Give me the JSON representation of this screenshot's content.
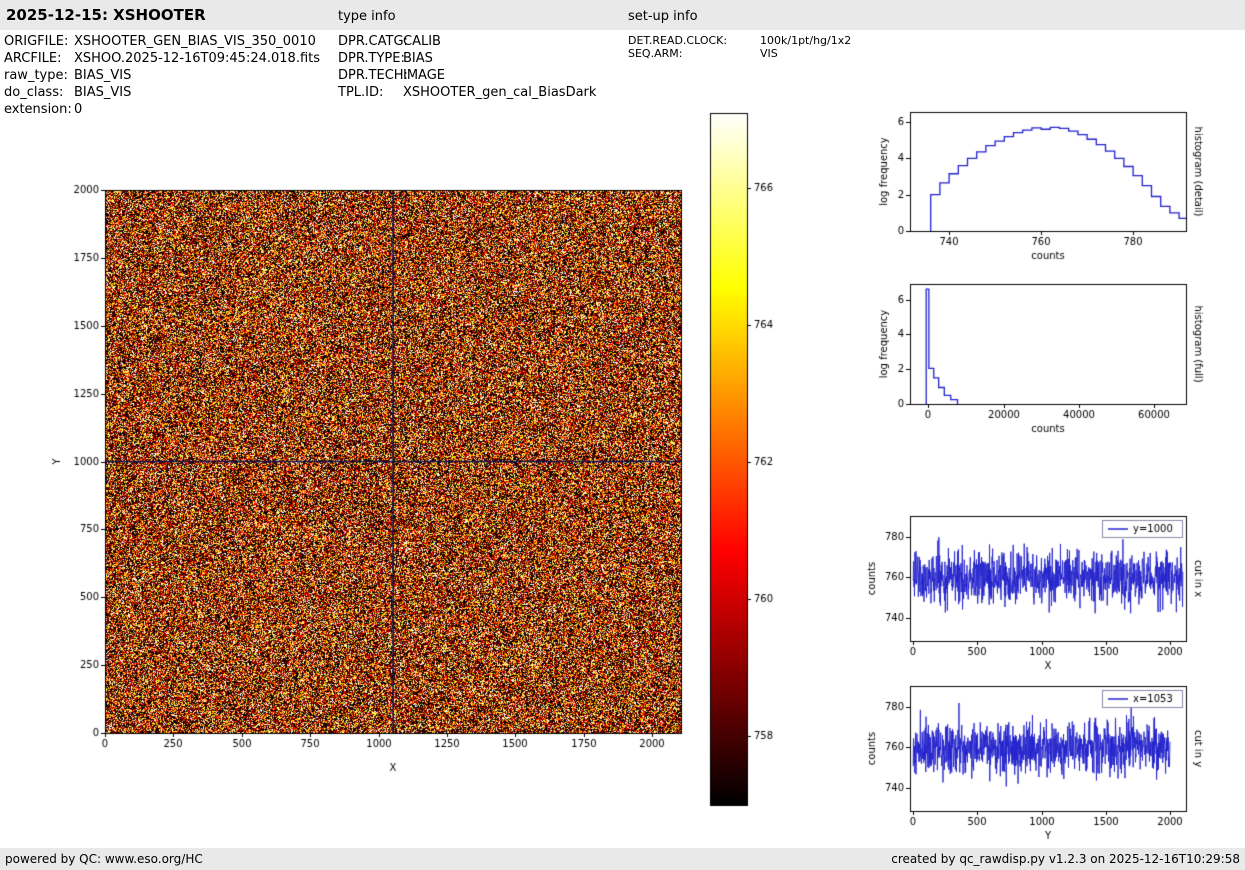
{
  "header": {
    "title": "2025-12-15: XSHOOTER",
    "type_info_label": "type info",
    "setup_info_label": "set-up info"
  },
  "file_info": {
    "rows": [
      {
        "label": "ORIGFILE:",
        "value": "XSHOOTER_GEN_BIAS_VIS_350_0010"
      },
      {
        "label": "ARCFILE:",
        "value": "XSHOO.2025-12-16T09:45:24.018.fits"
      },
      {
        "label": "raw_type:",
        "value": "BIAS_VIS"
      },
      {
        "label": "do_class:",
        "value": "BIAS_VIS"
      },
      {
        "label": "extension:",
        "value": "0"
      }
    ]
  },
  "type_info": {
    "rows": [
      {
        "label": "DPR.CATG:",
        "value": "CALIB"
      },
      {
        "label": "DPR.TYPE:",
        "value": "BIAS"
      },
      {
        "label": "DPR.TECH:",
        "value": "IMAGE"
      },
      {
        "label": "TPL.ID:",
        "value": "XSHOOTER_gen_cal_BiasDark"
      }
    ]
  },
  "setup_info": {
    "rows": [
      {
        "label": "DET.READ.CLOCK:",
        "value": "100k/1pt/hg/1x2"
      },
      {
        "label": "SEQ.ARM:",
        "value": "VIS"
      }
    ]
  },
  "footer": {
    "left": "powered by QC: www.eso.org/HC",
    "right": "created by qc_rawdisp.py v1.2.3 on 2025-12-16T10:29:58"
  },
  "chart_data": [
    {
      "id": "main-image",
      "type": "heatmap",
      "xlabel": "X",
      "ylabel": "Y",
      "xlim": [
        0,
        2105
      ],
      "ylim": [
        0,
        2000
      ],
      "x_ticks": [
        0,
        250,
        500,
        750,
        1000,
        1250,
        1500,
        1750,
        2000
      ],
      "y_ticks": [
        0,
        250,
        500,
        750,
        1000,
        1250,
        1500,
        1750,
        2000
      ],
      "colormap": "hot",
      "value_range": [
        757.0,
        767.1
      ],
      "pixel_mean": 760,
      "pixel_sd": 5,
      "colorbar_ticks": [
        758,
        760,
        762,
        764,
        766
      ],
      "crosshair": {
        "x": 1053,
        "y": 1000,
        "color": "#12124d"
      }
    },
    {
      "id": "hist-detail",
      "type": "bar",
      "style": "step",
      "xlabel": "counts",
      "ylabel": "log frequency",
      "right_label": "histogram (detail)",
      "xlim": [
        731.5,
        791.5
      ],
      "ylim": [
        0,
        6.55
      ],
      "x_ticks": [
        740,
        760,
        780
      ],
      "y_ticks": [
        0,
        2,
        4,
        6
      ],
      "line_color": "#2222cc",
      "bin_edges": [
        736,
        738,
        740,
        742,
        744,
        746,
        748,
        750,
        752,
        754,
        756,
        758,
        760,
        762,
        764,
        766,
        768,
        770,
        772,
        774,
        776,
        778,
        780,
        782,
        784,
        786,
        788,
        790,
        792
      ],
      "values": [
        2.0,
        2.65,
        3.15,
        3.6,
        4.0,
        4.35,
        4.7,
        4.95,
        5.2,
        5.42,
        5.55,
        5.68,
        5.6,
        5.7,
        5.65,
        5.5,
        5.3,
        5.05,
        4.75,
        4.4,
        4.0,
        3.55,
        3.05,
        2.5,
        1.9,
        1.35,
        1.0,
        0.7
      ]
    },
    {
      "id": "hist-full",
      "type": "bar",
      "style": "step",
      "xlabel": "counts",
      "ylabel": "log frequency",
      "right_label": "histogram (full)",
      "xlim": [
        -4800,
        68400
      ],
      "ylim": [
        0,
        6.9
      ],
      "x_ticks": [
        0,
        20000,
        40000,
        60000
      ],
      "y_ticks": [
        0,
        2,
        4,
        6
      ],
      "line_color": "#2222cc",
      "bin_edges": [
        -500,
        200,
        1500,
        2800,
        4300,
        6000,
        7800
      ],
      "values": [
        6.6,
        2.05,
        1.5,
        0.95,
        0.5,
        0.25
      ]
    },
    {
      "id": "cut-x",
      "type": "line",
      "xlabel": "X",
      "ylabel": "counts",
      "right_label": "cut in x",
      "xlim": [
        -25,
        2125
      ],
      "ylim": [
        728.5,
        790.5
      ],
      "x_ticks": [
        0,
        500,
        1000,
        1500,
        2000
      ],
      "y_ticks": [
        740,
        760,
        780
      ],
      "legend_position": "upper right",
      "series": [
        {
          "name": "y=1000",
          "color": "#2222cc",
          "mean": 760,
          "sd": 6.5,
          "n": 1050,
          "seed": 20251215,
          "data_range": [
            0,
            2100
          ]
        }
      ]
    },
    {
      "id": "cut-y",
      "type": "line",
      "xlabel": "Y",
      "ylabel": "counts",
      "right_label": "cut in y",
      "xlim": [
        -25,
        2125
      ],
      "ylim": [
        728.5,
        790.5
      ],
      "x_ticks": [
        0,
        500,
        1000,
        1500,
        2000
      ],
      "y_ticks": [
        740,
        760,
        780
      ],
      "legend_position": "upper right",
      "series": [
        {
          "name": "x=1053",
          "color": "#2222cc",
          "mean": 760,
          "sd": 6.5,
          "n": 1000,
          "seed": 1053,
          "data_range": [
            0,
            2000
          ]
        }
      ]
    }
  ]
}
